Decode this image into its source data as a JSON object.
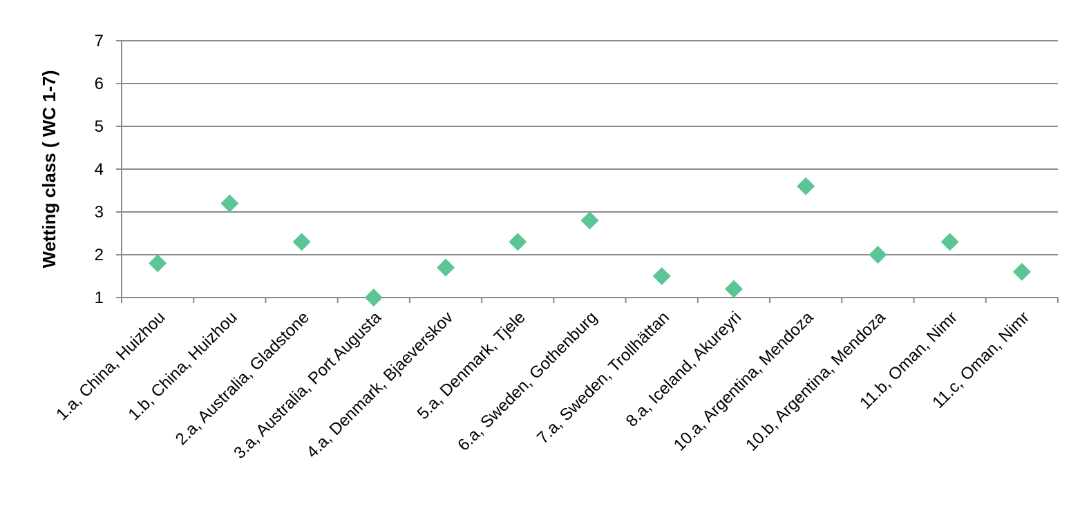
{
  "chart_data": {
    "type": "scatter",
    "title": "",
    "xlabel": "",
    "ylabel": "Wetting class ( WC 1-7)",
    "ylim": [
      1,
      7
    ],
    "yticks": [
      "1",
      "2",
      "3",
      "4",
      "5",
      "6",
      "7"
    ],
    "grid": true,
    "legend": "none",
    "marker": "diamond",
    "colors": {
      "marker": "#5cc595",
      "grid": "#8c8c8c",
      "axis": "#8c8c8c"
    },
    "categories": [
      "1.a, China, Huizhou",
      "1.b, China, Huizhou",
      "2.a, Australia, Gladstone",
      "3.a, Australia, Port Augusta",
      "4.a, Denmark, Bjaeverskov",
      "5.a, Denmark, Tjele",
      "6.a, Sweden, Gothenburg",
      "7.a, Sweden, Trollhättan",
      "8.a, Iceland, Akureyri",
      "10.a, Argentina, Mendoza",
      "10.b, Argentina, Mendoza",
      "11.b, Oman, Nimr",
      "11.c, Oman, Nimr"
    ],
    "values": [
      1.8,
      3.2,
      2.3,
      1.0,
      1.7,
      2.3,
      2.8,
      1.5,
      1.2,
      3.6,
      2.0,
      2.3,
      1.6
    ]
  }
}
